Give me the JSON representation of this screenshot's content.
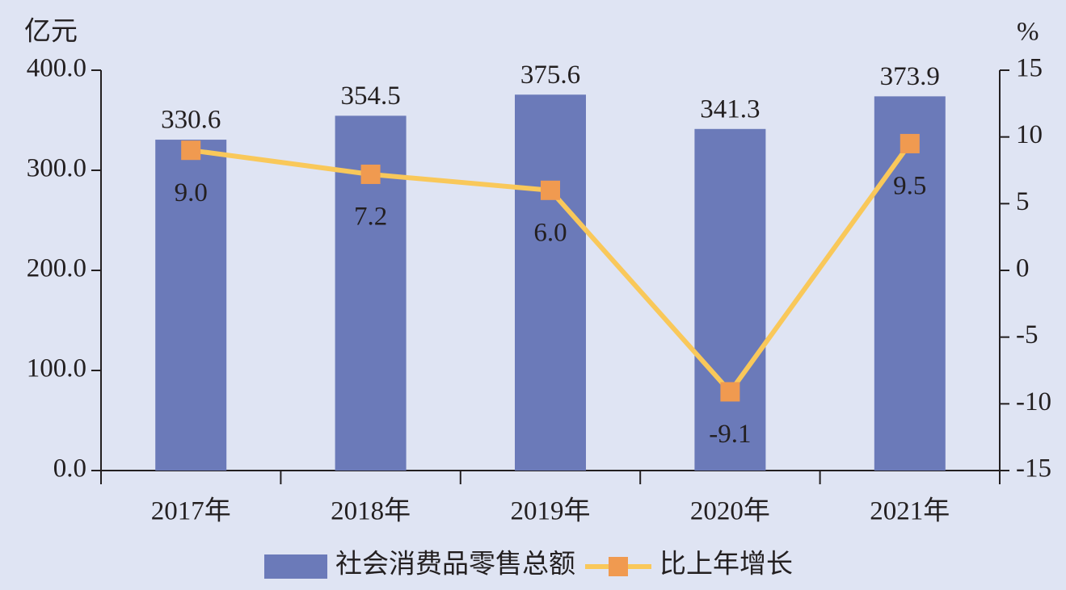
{
  "chart_data": {
    "type": "bar-line",
    "ylabel": "亿元",
    "y2label": "%",
    "categories": [
      "2017年",
      "2018年",
      "2019年",
      "2020年",
      "2021年"
    ],
    "series": [
      {
        "name": "社会消费品零售总额",
        "type": "bar",
        "color": "#6b7ab9",
        "values": [
          330.6,
          354.5,
          375.6,
          341.3,
          373.9
        ]
      },
      {
        "name": "比上年增长",
        "type": "line",
        "axis": "y2",
        "color": "#f9c85a",
        "marker_color": "#f09a50",
        "values": [
          9.0,
          7.2,
          6.0,
          -9.1,
          9.5
        ],
        "value_labels": [
          "9.0",
          "7.2",
          "6.0",
          "-9.1",
          "9.5"
        ]
      }
    ],
    "ylim": [
      0,
      400
    ],
    "yticks": [
      {
        "value": 0,
        "label": "0.0"
      },
      {
        "value": 100,
        "label": "100.0"
      },
      {
        "value": 200,
        "label": "200.0"
      },
      {
        "value": 300,
        "label": "300.0"
      },
      {
        "value": 400,
        "label": "400.0"
      }
    ],
    "y2lim": [
      -15,
      15
    ],
    "y2ticks": [
      -15,
      -10,
      -5,
      0,
      5,
      10,
      15
    ],
    "legend": "bottom"
  }
}
